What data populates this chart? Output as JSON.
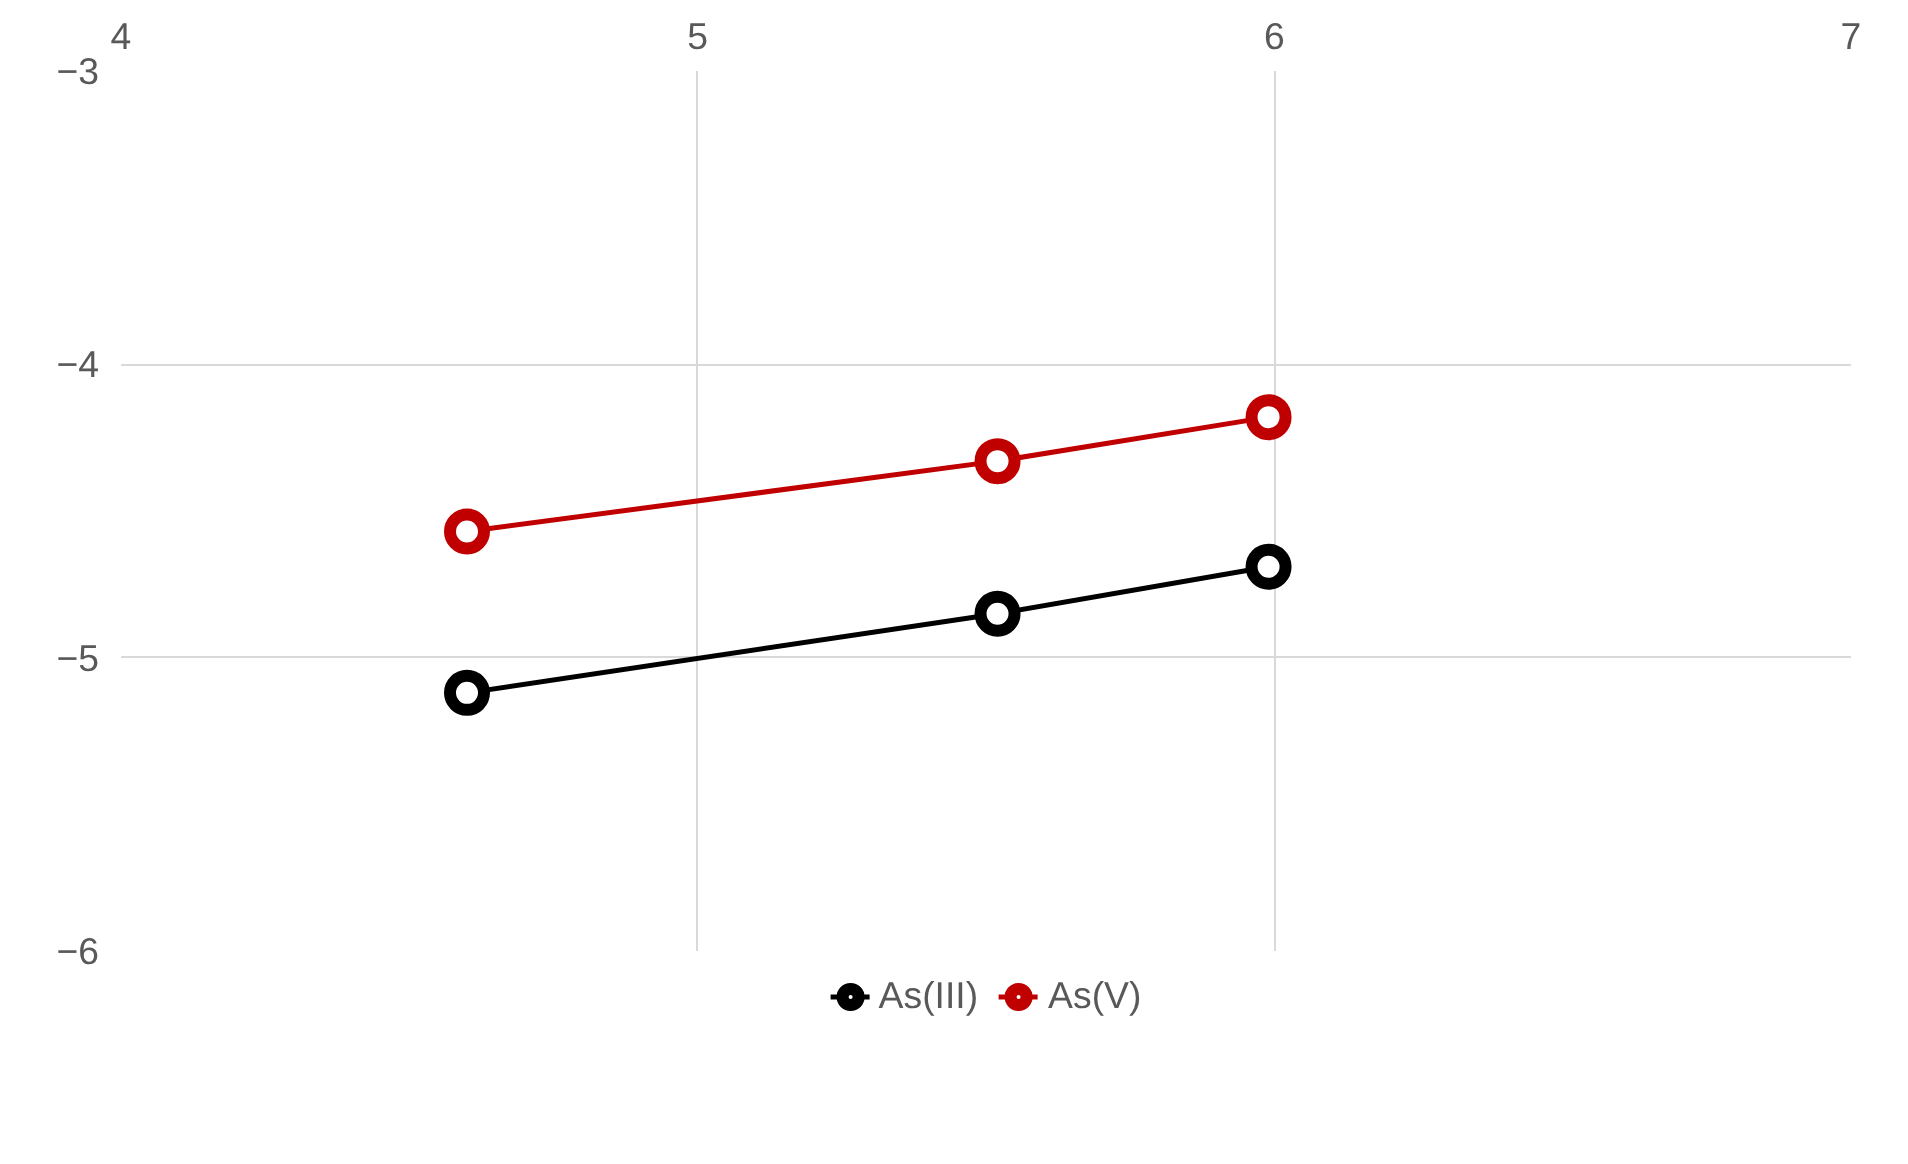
{
  "chart_data": {
    "type": "line",
    "xlim": [
      4,
      7
    ],
    "xticks": [
      4,
      5,
      6,
      7
    ],
    "ylim": [
      -6,
      -3
    ],
    "yticks": [
      -6,
      -5,
      -4,
      -3
    ],
    "grid": true,
    "legend": "bottom",
    "marker": "circle",
    "line_style": "solid",
    "series": [
      {
        "name": "As(III)",
        "color": "#000000",
        "x": [
          4.6,
          5.52,
          5.99
        ],
        "values": [
          -5.12,
          -4.85,
          -4.69
        ]
      },
      {
        "name": "As(V)",
        "color": "#c00000",
        "x": [
          4.6,
          5.52,
          5.99
        ],
        "values": [
          -4.57,
          -4.33,
          -4.18
        ]
      }
    ]
  }
}
